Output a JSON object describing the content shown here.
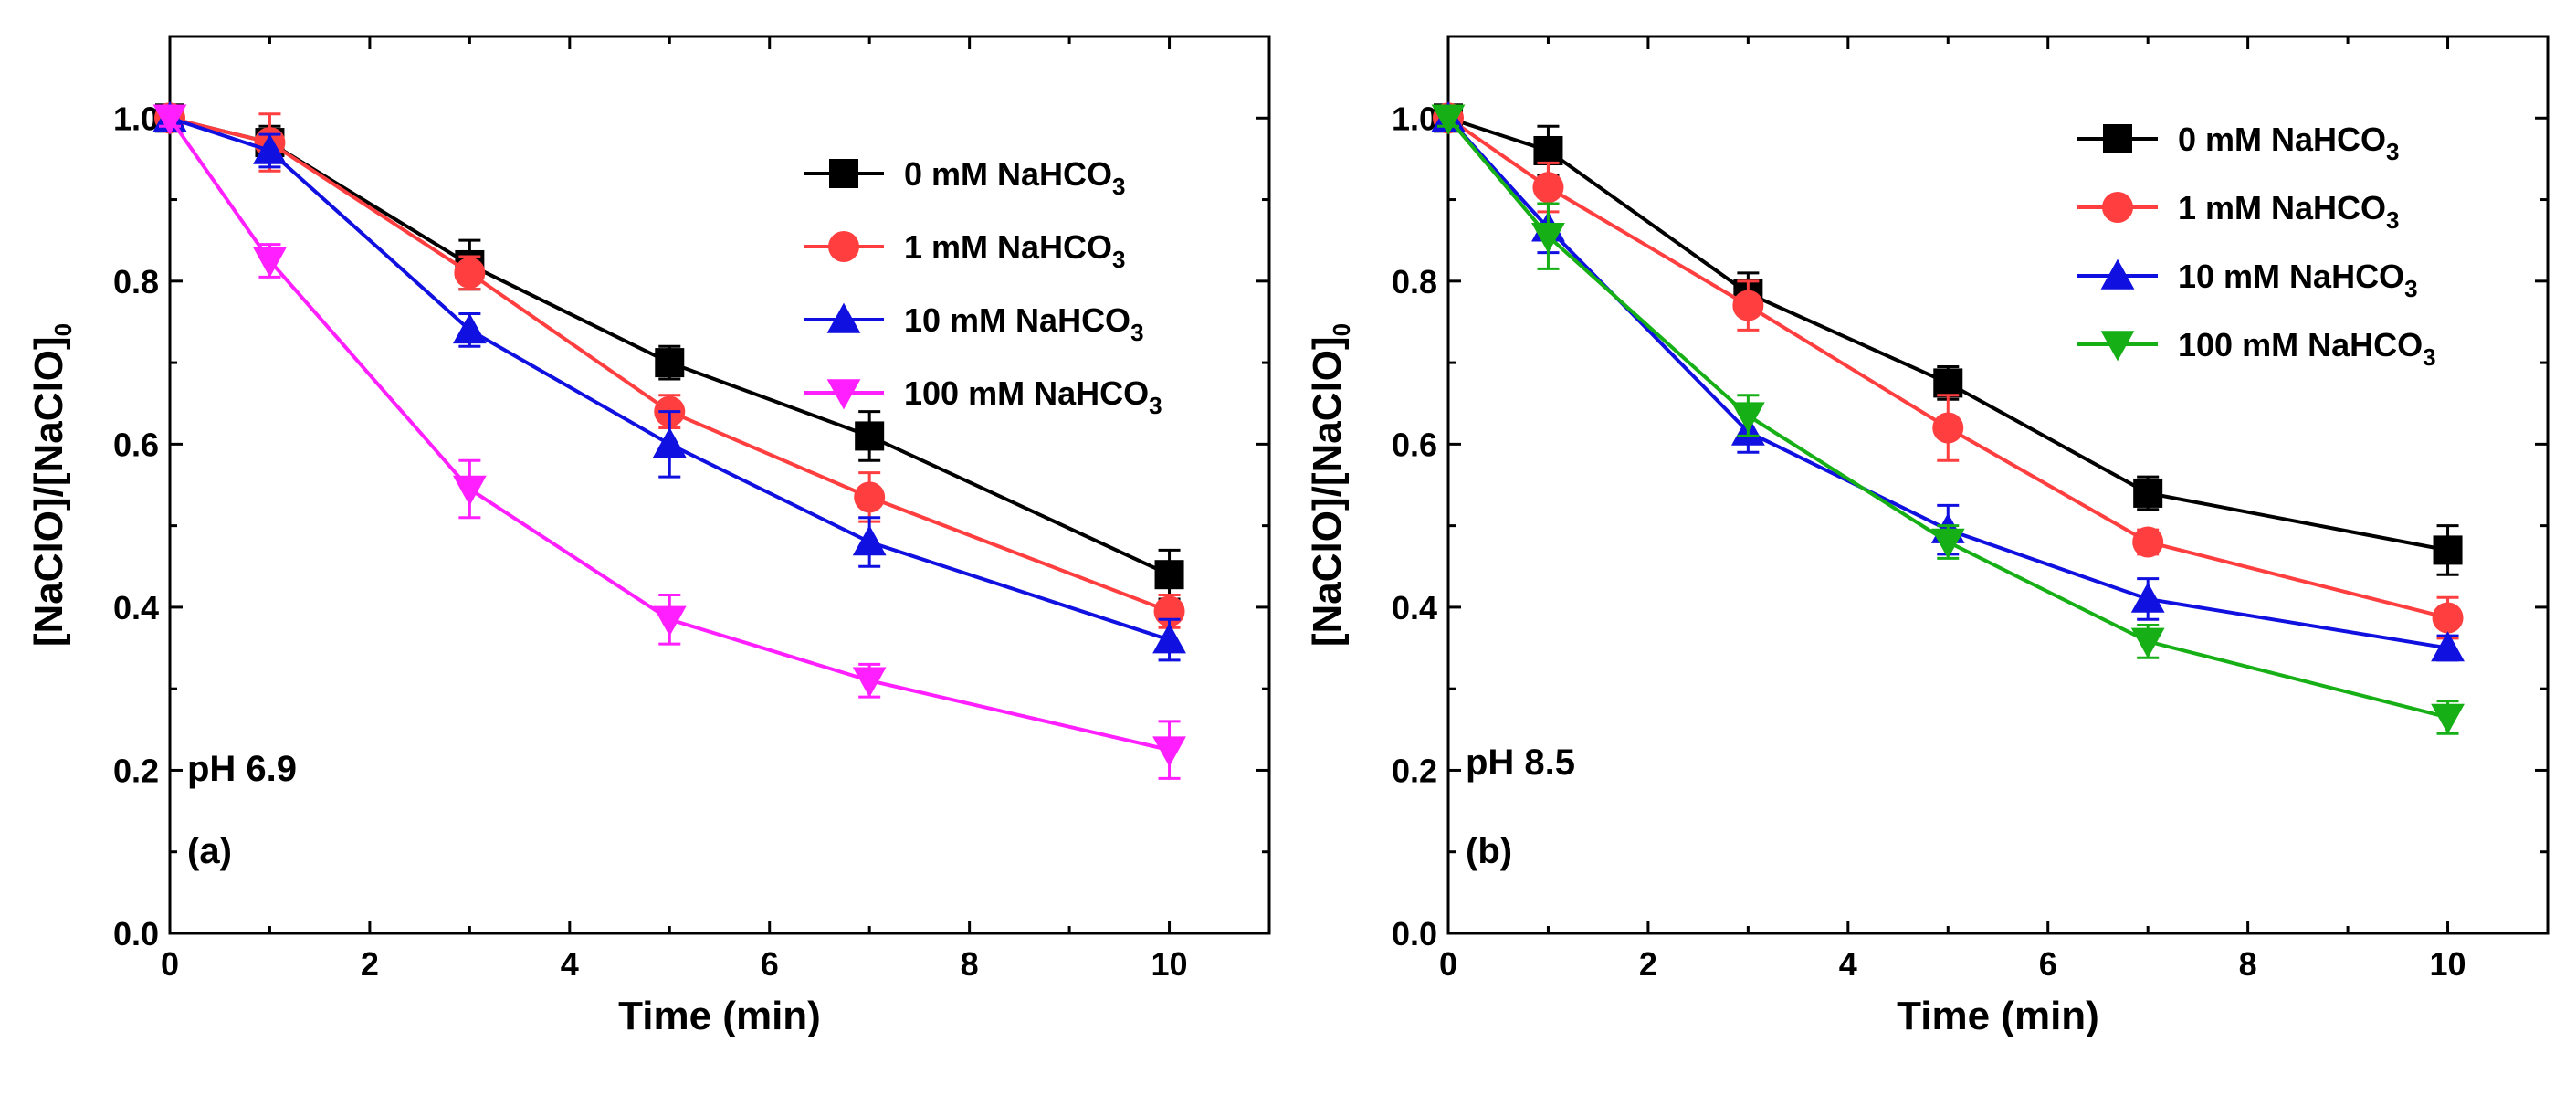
{
  "chart_data": [
    {
      "type": "line",
      "panel_label": "(a)",
      "condition": "pH 6.9",
      "xlabel": "Time (min)",
      "ylabel_main": "[NaClO]/[NaClO]",
      "ylabel_sub": "0",
      "xlim": [
        0,
        11
      ],
      "ylim": [
        0,
        1.1
      ],
      "xticks": [
        "0",
        "2",
        "4",
        "6",
        "8",
        "10"
      ],
      "yticks": [
        "0.0",
        "0.2",
        "0.4",
        "0.6",
        "0.8",
        "1.0"
      ],
      "x": [
        0,
        1,
        3,
        5,
        7,
        10
      ],
      "series": [
        {
          "name_main": "0 mM NaHCO",
          "name_sub": "3",
          "color": "#000000",
          "marker": "square",
          "values": [
            1.0,
            0.97,
            0.82,
            0.7,
            0.61,
            0.44
          ],
          "errors": [
            0.01,
            0.02,
            0.03,
            0.02,
            0.03,
            0.03
          ]
        },
        {
          "name_main": "1 mM NaHCO",
          "name_sub": "3",
          "color": "#FF3F3F",
          "marker": "circle",
          "values": [
            1.0,
            0.97,
            0.81,
            0.64,
            0.535,
            0.395
          ],
          "errors": [
            0.01,
            0.035,
            0.02,
            0.02,
            0.03,
            0.02
          ]
        },
        {
          "name_main": "10 mM NaHCO",
          "name_sub": "3",
          "color": "#1010E0",
          "marker": "triangle-up",
          "values": [
            1.0,
            0.96,
            0.74,
            0.6,
            0.48,
            0.36
          ],
          "errors": [
            0.01,
            0.02,
            0.02,
            0.04,
            0.03,
            0.025
          ]
        },
        {
          "name_main": "100 mM NaHCO",
          "name_sub": "3",
          "color": "#FF1FFF",
          "marker": "triangle-down",
          "values": [
            1.0,
            0.825,
            0.545,
            0.385,
            0.31,
            0.225
          ],
          "errors": [
            0.01,
            0.02,
            0.035,
            0.03,
            0.02,
            0.035
          ]
        }
      ]
    },
    {
      "type": "line",
      "panel_label": "(b)",
      "condition": "pH 8.5",
      "xlabel": "Time (min)",
      "ylabel_main": "[NaClO]/[NaClO]",
      "ylabel_sub": "0",
      "xlim": [
        0,
        11
      ],
      "ylim": [
        0,
        1.1
      ],
      "xticks": [
        "0",
        "2",
        "4",
        "6",
        "8",
        "10"
      ],
      "yticks": [
        "0.0",
        "0.2",
        "0.4",
        "0.6",
        "0.8",
        "1.0"
      ],
      "x": [
        0,
        1,
        3,
        5,
        7,
        10
      ],
      "series": [
        {
          "name_main": "0 mM NaHCO",
          "name_sub": "3",
          "color": "#000000",
          "marker": "square",
          "values": [
            1.0,
            0.96,
            0.785,
            0.675,
            0.54,
            0.47
          ],
          "errors": [
            0.01,
            0.03,
            0.025,
            0.02,
            0.02,
            0.03
          ]
        },
        {
          "name_main": "1 mM NaHCO",
          "name_sub": "3",
          "color": "#FF3F3F",
          "marker": "circle",
          "values": [
            1.0,
            0.915,
            0.77,
            0.62,
            0.48,
            0.387
          ],
          "errors": [
            0.01,
            0.03,
            0.03,
            0.04,
            0.015,
            0.025
          ]
        },
        {
          "name_main": "10 mM NaHCO",
          "name_sub": "3",
          "color": "#1010E0",
          "marker": "triangle-up",
          "values": [
            1.0,
            0.865,
            0.615,
            0.495,
            0.41,
            0.35
          ],
          "errors": [
            0.01,
            0.03,
            0.025,
            0.03,
            0.025,
            0.015
          ]
        },
        {
          "name_main": "100 mM NaHCO",
          "name_sub": "3",
          "color": "#16B016",
          "marker": "triangle-down",
          "values": [
            1.0,
            0.855,
            0.635,
            0.48,
            0.358,
            0.265
          ],
          "errors": [
            0.01,
            0.04,
            0.025,
            0.02,
            0.02,
            0.02
          ]
        }
      ]
    }
  ]
}
